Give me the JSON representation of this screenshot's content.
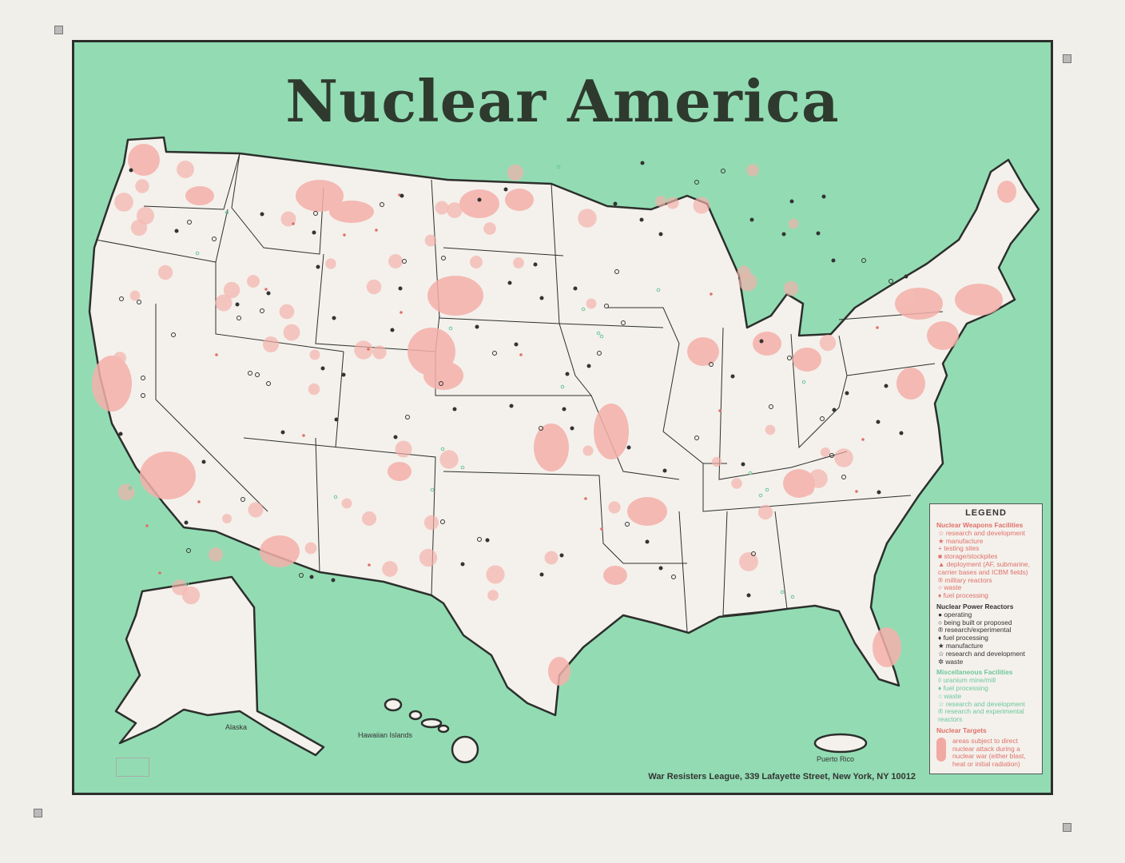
{
  "title": "Nuclear America",
  "labels": {
    "alaska": "Alaska",
    "hawaii": "Hawaiian Islands",
    "puerto_rico": "Puerto Rico"
  },
  "colors": {
    "background_sea": "#93dcb3",
    "land": "#f4f1ec",
    "targets": "#f4b0aa",
    "weapons": "#e0706a",
    "power": "#333333",
    "misc": "#6cc79a"
  },
  "legend": {
    "title": "LEGEND",
    "weapons": {
      "heading": "Nuclear Weapons Facilities",
      "items": [
        "☆ research and development",
        "★ manufacture",
        "+ testing sites",
        "■ storage/stockpiles",
        "▲ deployment (AF, submarine, carrier bases and ICBM fields)",
        "® military reactors",
        "○ waste",
        "♦ fuel processing"
      ]
    },
    "power": {
      "heading": "Nuclear Power Reactors",
      "items": [
        "● operating",
        "○ being built or proposed",
        "® research/experimental",
        "♦ fuel processing",
        "★ manufacture",
        "☆ research and development",
        "✲ waste"
      ]
    },
    "misc": {
      "heading": "Miscellaneous Facilities",
      "items": [
        "◊ uranium mine/mill",
        "♦ fuel processing",
        "○ waste",
        "☆ research and development",
        "® research and experimental reactors"
      ]
    },
    "targets": {
      "heading": "Nuclear Targets",
      "text": "areas subject to direct nuclear attack during a nuclear war (either blast, heat or initial radiation)"
    }
  },
  "footer": "War Resisters League, 339 Lafayette Street, New York, NY 10012"
}
